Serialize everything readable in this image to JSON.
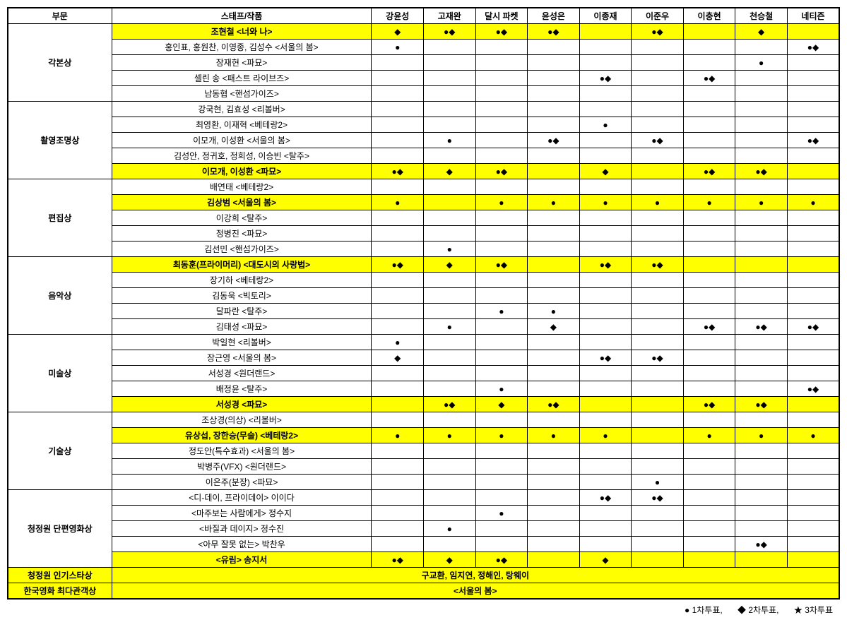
{
  "headers": {
    "category": "부문",
    "title": "스태프/작품",
    "voters": [
      "강윤성",
      "고재완",
      "달시 파켓",
      "윤성은",
      "이종재",
      "이준우",
      "이충현",
      "천승철",
      "네티즌"
    ]
  },
  "symbols": {
    "circle": "●",
    "diamond": "◆",
    "star": "★"
  },
  "legend": {
    "vote1": "● 1차투표,",
    "vote2": "◆ 2차투표,",
    "vote3": "★ 3차투표"
  },
  "categories": [
    {
      "name": "각본상",
      "rows": [
        {
          "title": "조현철 <너와 나>",
          "hl": true,
          "votes": [
            "◆",
            "●◆",
            "●◆",
            "●◆",
            "",
            "●◆",
            "",
            "◆",
            ""
          ]
        },
        {
          "title": "홍인표, 홍원찬, 이영종, 김성수 <서울의 봄>",
          "hl": false,
          "votes": [
            "●",
            "",
            "",
            "",
            "",
            "",
            "",
            "",
            "●◆"
          ]
        },
        {
          "title": "장재현 <파묘>",
          "hl": false,
          "votes": [
            "",
            "",
            "",
            "",
            "",
            "",
            "",
            "●",
            ""
          ]
        },
        {
          "title": "셀린 송 <패스트 라이브즈>",
          "hl": false,
          "votes": [
            "",
            "",
            "",
            "",
            "●◆",
            "",
            "●◆",
            "",
            ""
          ]
        },
        {
          "title": "남동협 <핸섬가이즈>",
          "hl": false,
          "votes": [
            "",
            "",
            "",
            "",
            "",
            "",
            "",
            "",
            ""
          ]
        }
      ]
    },
    {
      "name": "촬영조명상",
      "rows": [
        {
          "title": "강국현, 김효성 <리볼버>",
          "hl": false,
          "votes": [
            "",
            "",
            "",
            "",
            "",
            "",
            "",
            "",
            ""
          ]
        },
        {
          "title": "최영환, 이재혁 <베테랑2>",
          "hl": false,
          "votes": [
            "",
            "",
            "",
            "",
            "●",
            "",
            "",
            "",
            ""
          ]
        },
        {
          "title": "이모개, 이성환 <서울의 봄>",
          "hl": false,
          "votes": [
            "",
            "●",
            "",
            "●◆",
            "",
            "●◆",
            "",
            "",
            "●◆"
          ]
        },
        {
          "title": "김성안, 정귀호, 정희성, 이승빈 <탈주>",
          "hl": false,
          "votes": [
            "",
            "",
            "",
            "",
            "",
            "",
            "",
            "",
            ""
          ]
        },
        {
          "title": "이모개, 이성환 <파묘>",
          "hl": true,
          "votes": [
            "●◆",
            "◆",
            "●◆",
            "",
            "◆",
            "",
            "●◆",
            "●◆",
            ""
          ]
        }
      ]
    },
    {
      "name": "편집상",
      "rows": [
        {
          "title": "배연태 <베테랑2>",
          "hl": false,
          "votes": [
            "",
            "",
            "",
            "",
            "",
            "",
            "",
            "",
            ""
          ]
        },
        {
          "title": "김상범 <서울의 봄>",
          "hl": true,
          "votes": [
            "●",
            "",
            "●",
            "●",
            "●",
            "●",
            "●",
            "●",
            "●"
          ]
        },
        {
          "title": "이강희 <탈주>",
          "hl": false,
          "votes": [
            "",
            "",
            "",
            "",
            "",
            "",
            "",
            "",
            ""
          ]
        },
        {
          "title": "정병진 <파묘>",
          "hl": false,
          "votes": [
            "",
            "",
            "",
            "",
            "",
            "",
            "",
            "",
            ""
          ]
        },
        {
          "title": "김선민 <핸섬가이즈>",
          "hl": false,
          "votes": [
            "",
            "●",
            "",
            "",
            "",
            "",
            "",
            "",
            ""
          ]
        }
      ]
    },
    {
      "name": "음악상",
      "rows": [
        {
          "title": "최동훈(프라이머리) <대도시의 사랑법>",
          "hl": true,
          "votes": [
            "●◆",
            "◆",
            "●◆",
            "",
            "●◆",
            "●◆",
            "",
            "",
            ""
          ]
        },
        {
          "title": "장기하 <베테랑2>",
          "hl": false,
          "votes": [
            "",
            "",
            "",
            "",
            "",
            "",
            "",
            "",
            ""
          ]
        },
        {
          "title": "김동욱 <빅토리>",
          "hl": false,
          "votes": [
            "",
            "",
            "",
            "",
            "",
            "",
            "",
            "",
            ""
          ]
        },
        {
          "title": "달파란 <탈주>",
          "hl": false,
          "votes": [
            "",
            "",
            "●",
            "●",
            "",
            "",
            "",
            "",
            ""
          ]
        },
        {
          "title": "김태성 <파묘>",
          "hl": false,
          "votes": [
            "",
            "●",
            "",
            "◆",
            "",
            "",
            "●◆",
            "●◆",
            "●◆"
          ]
        }
      ]
    },
    {
      "name": "미술상",
      "rows": [
        {
          "title": "박일현 <리볼버>",
          "hl": false,
          "votes": [
            "●",
            "",
            "",
            "",
            "",
            "",
            "",
            "",
            ""
          ]
        },
        {
          "title": "장근영 <서울의 봄>",
          "hl": false,
          "votes": [
            "◆",
            "",
            "",
            "",
            "●◆",
            "●◆",
            "",
            "",
            ""
          ]
        },
        {
          "title": "서성경 <원더랜드>",
          "hl": false,
          "votes": [
            "",
            "",
            "",
            "",
            "",
            "",
            "",
            "",
            ""
          ]
        },
        {
          "title": "배정윤 <탈주>",
          "hl": false,
          "votes": [
            "",
            "",
            "●",
            "",
            "",
            "",
            "",
            "",
            "●◆"
          ]
        },
        {
          "title": "서성경 <파묘>",
          "hl": true,
          "votes": [
            "",
            "●◆",
            "◆",
            "●◆",
            "",
            "",
            "●◆",
            "●◆",
            ""
          ]
        }
      ]
    },
    {
      "name": "기술상",
      "rows": [
        {
          "title": "조상경(의상) <리볼버>",
          "hl": false,
          "votes": [
            "",
            "",
            "",
            "",
            "",
            "",
            "",
            "",
            ""
          ]
        },
        {
          "title": "유상섭, 장한승(무술) <베테랑2>",
          "hl": true,
          "votes": [
            "●",
            "●",
            "●",
            "●",
            "●",
            "",
            "●",
            "●",
            "●"
          ]
        },
        {
          "title": "정도안(특수효과) <서울의 봄>",
          "hl": false,
          "votes": [
            "",
            "",
            "",
            "",
            "",
            "",
            "",
            "",
            ""
          ]
        },
        {
          "title": "박병주(VFX) <원더랜드>",
          "hl": false,
          "votes": [
            "",
            "",
            "",
            "",
            "",
            "",
            "",
            "",
            ""
          ]
        },
        {
          "title": "이은주(분장) <파묘>",
          "hl": false,
          "votes": [
            "",
            "",
            "",
            "",
            "",
            "●",
            "",
            "",
            ""
          ]
        }
      ]
    },
    {
      "name": "청정원 단편영화상",
      "rows": [
        {
          "title": "<디-데이, 프라이데이> 이이다",
          "hl": false,
          "votes": [
            "",
            "",
            "",
            "",
            "●◆",
            "●◆",
            "",
            "",
            ""
          ]
        },
        {
          "title": "<마주보는 사람에게> 정수지",
          "hl": false,
          "votes": [
            "",
            "",
            "●",
            "",
            "",
            "",
            "",
            "",
            ""
          ]
        },
        {
          "title": "<바질과 데이지> 정수진",
          "hl": false,
          "votes": [
            "",
            "●",
            "",
            "",
            "",
            "",
            "",
            "",
            ""
          ]
        },
        {
          "title": "<아무 잘못 없는> 박찬우",
          "hl": false,
          "votes": [
            "",
            "",
            "",
            "",
            "",
            "",
            "",
            "●◆",
            ""
          ]
        },
        {
          "title": "<유림> 송지서",
          "hl": true,
          "votes": [
            "●◆",
            "◆",
            "●◆",
            "",
            "◆",
            "",
            "",
            "",
            ""
          ]
        }
      ]
    }
  ],
  "footerRows": [
    {
      "label": "청정원 인기스타상",
      "value": "구교환, 임지연, 정해인, 탕웨이"
    },
    {
      "label": "한국영화 최다관객상",
      "value": "<서울의 봄>"
    }
  ]
}
